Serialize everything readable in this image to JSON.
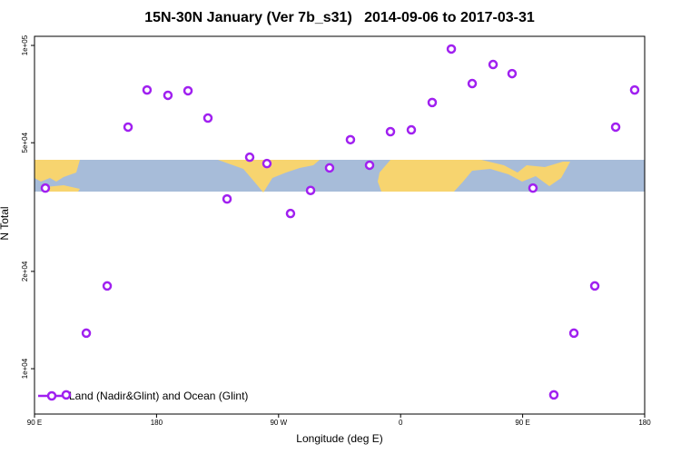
{
  "chart_data": {
    "type": "scatter",
    "title": "15N-30N January (Ver 7b_s31)   2014-09-06 to 2017-03-31",
    "x_label": "Longitude (deg E)",
    "y_label": "N Total",
    "log_y": true,
    "legend": "bottomleft",
    "xlim": [
      90,
      540
    ],
    "xticks": [
      {
        "value": 90,
        "label": "90 E"
      },
      {
        "value": 180,
        "label": "180"
      },
      {
        "value": 270,
        "label": "90 W"
      },
      {
        "value": 360,
        "label": "0"
      },
      {
        "value": 450,
        "label": "90 E"
      },
      {
        "value": 540,
        "label": "180"
      }
    ],
    "ylim": [
      7240,
      106700
    ],
    "yticks": [
      {
        "value": 10000,
        "label": "1e+04"
      },
      {
        "value": 20000,
        "label": "2e+04"
      },
      {
        "value": 50000,
        "label": "5e+04"
      },
      {
        "value": 100000,
        "label": "1e+05"
      }
    ],
    "series": [
      {
        "name": "Land (Nadir&Glint) and Ocean (Glint)",
        "color": "#a020f0",
        "x": [
          98.0,
          113.4,
          128.2,
          143.6,
          159.0,
          173.0,
          188.4,
          203.2,
          217.9,
          232.0,
          248.7,
          261.4,
          278.8,
          293.6,
          307.6,
          323.0,
          337.1,
          352.5,
          367.9,
          383.3,
          397.4,
          412.8,
          428.2,
          442.2,
          457.6,
          473.0,
          487.8,
          503.2,
          518.6,
          532.6
        ],
        "values": [
          36200,
          8300,
          12880,
          18030,
          55900,
          72800,
          70100,
          72400,
          59600,
          33500,
          45100,
          43100,
          30200,
          35600,
          41800,
          51100,
          42600,
          54100,
          54800,
          66600,
          97500,
          76200,
          87300,
          81800,
          36200,
          8300,
          12880,
          18030,
          55900,
          72800
        ]
      }
    ]
  }
}
